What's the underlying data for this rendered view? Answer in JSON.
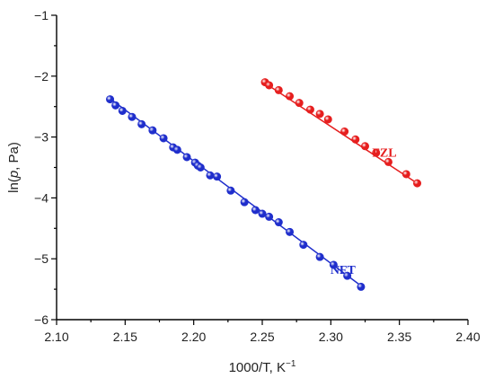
{
  "chart_data": {
    "type": "scatter",
    "xlabel": "1000/T, K",
    "xlabel_sup": "−1",
    "ylabel_pre": "ln(",
    "ylabel_italic": "p",
    "ylabel_post": ", Pa)",
    "xlim": [
      2.1,
      2.4
    ],
    "ylim": [
      -6,
      -1
    ],
    "xticks": [
      2.1,
      2.15,
      2.2,
      2.25,
      2.3,
      2.35,
      2.4
    ],
    "xtick_labels": [
      "2.10",
      "2.15",
      "2.20",
      "2.25",
      "2.30",
      "2.35",
      "2.40"
    ],
    "yticks": [
      -6,
      -5,
      -4,
      -3,
      -2,
      -1
    ],
    "ytick_labels": [
      "−6",
      "−5",
      "−4",
      "−3",
      "−2",
      "−1"
    ],
    "grid": false,
    "series": [
      {
        "name": "NFT",
        "color": "#1f2ecc",
        "fit": [
          [
            2.139,
            -2.37
          ],
          [
            2.323,
            -5.46
          ]
        ],
        "label_at": [
          2.318,
          -5.25
        ],
        "points": [
          [
            2.139,
            -2.38
          ],
          [
            2.143,
            -2.48
          ],
          [
            2.148,
            -2.57
          ],
          [
            2.155,
            -2.67
          ],
          [
            2.162,
            -2.79
          ],
          [
            2.17,
            -2.89
          ],
          [
            2.178,
            -3.02
          ],
          [
            2.185,
            -3.17
          ],
          [
            2.188,
            -3.21
          ],
          [
            2.195,
            -3.33
          ],
          [
            2.201,
            -3.42
          ],
          [
            2.203,
            -3.47
          ],
          [
            2.205,
            -3.5
          ],
          [
            2.212,
            -3.63
          ],
          [
            2.217,
            -3.65
          ],
          [
            2.227,
            -3.88
          ],
          [
            2.237,
            -4.07
          ],
          [
            2.245,
            -4.2
          ],
          [
            2.25,
            -4.26
          ],
          [
            2.255,
            -4.31
          ],
          [
            2.262,
            -4.4
          ],
          [
            2.27,
            -4.56
          ],
          [
            2.28,
            -4.77
          ],
          [
            2.292,
            -4.97
          ],
          [
            2.302,
            -5.1
          ],
          [
            2.312,
            -5.28
          ],
          [
            2.322,
            -5.46
          ]
        ]
      },
      {
        "name": "FZL",
        "color": "#e61e1e",
        "fit": [
          [
            2.251,
            -2.1
          ],
          [
            2.365,
            -3.79
          ]
        ],
        "label_at": [
          2.348,
          -3.32
        ],
        "points": [
          [
            2.252,
            -2.1
          ],
          [
            2.255,
            -2.15
          ],
          [
            2.262,
            -2.23
          ],
          [
            2.27,
            -2.33
          ],
          [
            2.277,
            -2.44
          ],
          [
            2.285,
            -2.55
          ],
          [
            2.292,
            -2.62
          ],
          [
            2.298,
            -2.71
          ],
          [
            2.31,
            -2.91
          ],
          [
            2.318,
            -3.04
          ],
          [
            2.325,
            -3.15
          ],
          [
            2.333,
            -3.26
          ],
          [
            2.342,
            -3.41
          ],
          [
            2.355,
            -3.61
          ],
          [
            2.363,
            -3.76
          ]
        ]
      }
    ]
  }
}
